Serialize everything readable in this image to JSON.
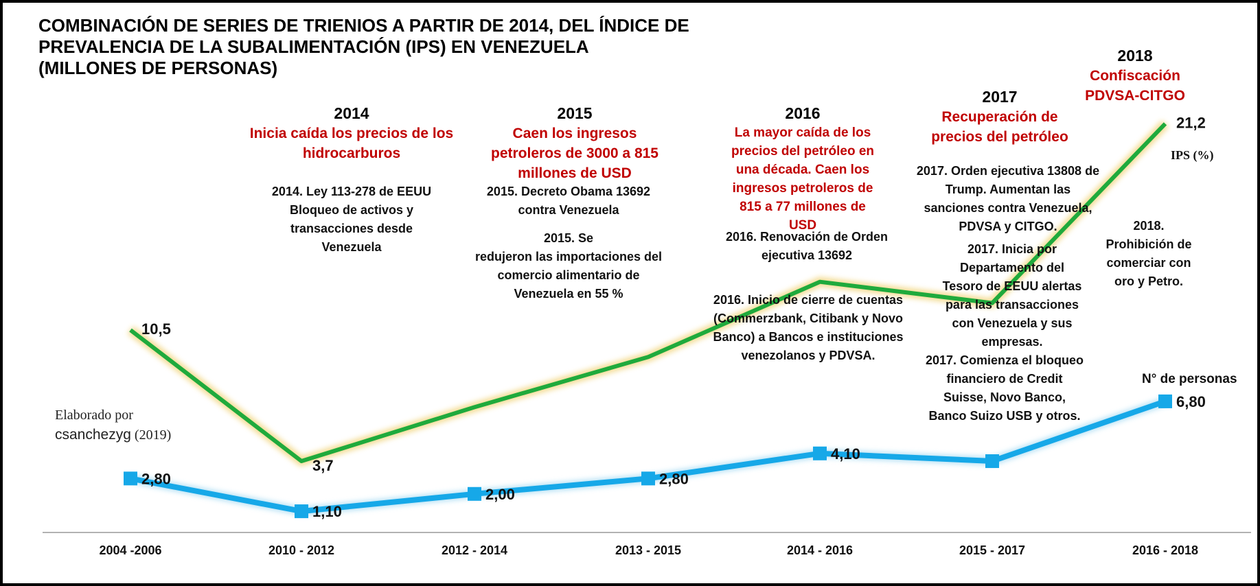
{
  "title_lines": [
    "COMBINACIÓN  DE SERIES DE TRIENIOS A PARTIR DE 2014, DEL ÍNDICE DE",
    "PREVALENCIA  DE LA SUBALIMENTACIÓN  (IPS) EN VENEZUELA",
    "(MILLONES DE PERSONAS)"
  ],
  "annotations": {
    "y2014": {
      "year": "2014",
      "headline": [
        "Inicia caída los precios de los",
        "hidrocarburos"
      ],
      "notes": [
        [
          "2014. Ley 113-278 de EEUU",
          "Bloqueo de activos y",
          "transacciones desde",
          "Venezuela"
        ]
      ]
    },
    "y2015": {
      "year": "2015",
      "headline": [
        "Caen los ingresos",
        "petroleros de 3000 a 815",
        "millones de USD"
      ],
      "notes": [
        [
          "2015. Decreto Obama 13692",
          "contra Venezuela"
        ],
        [
          "2015. Se",
          "redujeron las importaciones del",
          "comercio alimentario de",
          "Venezuela en  55  %"
        ]
      ]
    },
    "y2016": {
      "year": "2016",
      "headline": [
        "La mayor caída de los",
        "precios del petróleo en",
        "una década. Caen los",
        "ingresos petroleros de",
        "815 a 77 millones de",
        "USD"
      ],
      "notes": [
        [
          "2016. Renovación de Orden",
          "ejecutiva 13692"
        ],
        [
          "2016. Inicio de cierre de cuentas",
          "(Commerzbank, Citibank y  Novo",
          "Banco) a Bancos e instituciones",
          "venezolanos y PDVSA."
        ]
      ]
    },
    "y2017": {
      "year": "2017",
      "headline": [
        "Recuperación de",
        "precios del petróleo"
      ],
      "notes": [
        [
          "2017. Orden ejecutiva 13808 de",
          "Trump. Aumentan las",
          "sanciones contra Venezuela,",
          "PDVSA y CITGO."
        ],
        [
          "2017. Inicia por",
          "Departamento del",
          "Tesoro de EEUU alertas",
          "para las transacciones",
          "con Venezuela y sus",
          "empresas."
        ],
        [
          "2017. Comienza el bloqueo",
          "financiero de Credit",
          "Suisse, Novo Banco,",
          "Banco Suizo USB y otros."
        ]
      ]
    },
    "y2018": {
      "year": "2018",
      "headline": [
        "Confiscación",
        "PDVSA-CITGO"
      ],
      "notes": [
        [
          "2018.",
          "Prohibición de",
          "comerciar con",
          "oro y Petro."
        ]
      ]
    }
  },
  "credit": {
    "line1": "Elaborado por",
    "author": "csanchezyg",
    "year": "(2019)"
  },
  "chart_data": {
    "type": "line",
    "title": "COMBINACIÓN DE SERIES DE TRIENIOS A PARTIR DE 2014, DEL ÍNDICE DE PREVALENCIA DE LA SUBALIMENTACIÓN (IPS) EN VENEZUELA (MILLONES DE PERSONAS)",
    "categories": [
      "2004 -2006",
      "2010 - 2012",
      "2012 - 2014",
      "2013 - 2015",
      "2014 - 2016",
      "2015 - 2017",
      "2016 - 2018"
    ],
    "ylim": [
      0,
      22
    ],
    "grid": false,
    "series": [
      {
        "name": "IPS (%)",
        "color": "#1faa3c",
        "values": [
          10.5,
          3.7,
          6.5,
          9.1,
          13.0,
          11.9,
          21.2
        ],
        "labels": [
          "10,5",
          "3,7",
          null,
          null,
          null,
          null,
          "21,2"
        ]
      },
      {
        "name": "N° de personas",
        "color": "#16a8e8",
        "values": [
          2.8,
          1.1,
          2.0,
          2.8,
          4.1,
          3.7,
          6.8
        ],
        "labels": [
          "2,80",
          "1,10",
          "2,00",
          "2,80",
          "4,10",
          null,
          "6,80"
        ]
      }
    ]
  }
}
